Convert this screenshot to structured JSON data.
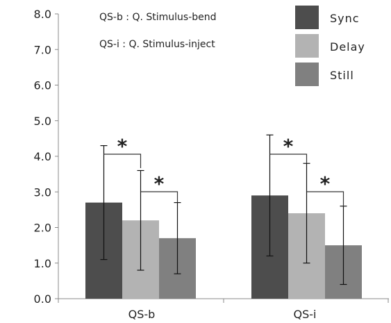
{
  "chart_data": {
    "type": "bar",
    "categories": [
      "QS-b",
      "QS-i"
    ],
    "series": [
      {
        "name": "Sync",
        "color": "#4d4d4d",
        "values": [
          2.7,
          2.9
        ],
        "err_low": [
          1.1,
          1.2
        ],
        "err_high": [
          4.3,
          4.6
        ]
      },
      {
        "name": "Delay",
        "color": "#b3b3b3",
        "values": [
          2.2,
          2.4
        ],
        "err_low": [
          0.8,
          1.0
        ],
        "err_high": [
          3.6,
          3.8
        ]
      },
      {
        "name": "Still",
        "color": "#808080",
        "values": [
          1.7,
          1.5
        ],
        "err_low": [
          0.7,
          0.4
        ],
        "err_high": [
          2.7,
          2.6
        ]
      }
    ],
    "yticks": [
      "0.0",
      "1.0",
      "2.0",
      "3.0",
      "4.0",
      "5.0",
      "6.0",
      "7.0",
      "8.0"
    ],
    "ylim": [
      0,
      8
    ],
    "grid": false,
    "legend_position": "top-right",
    "annotations": [
      "QS-b : Q. Stimulus-bend",
      "QS-i : Q. Stimulus-inject"
    ],
    "significance": [
      {
        "category": 0,
        "from": "Sync",
        "to": "Delay",
        "label": "*"
      },
      {
        "category": 0,
        "from": "Delay",
        "to": "Still",
        "label": "*"
      },
      {
        "category": 1,
        "from": "Sync",
        "to": "Delay",
        "label": "*"
      },
      {
        "category": 1,
        "from": "Delay",
        "to": "Still",
        "label": "*"
      }
    ]
  }
}
